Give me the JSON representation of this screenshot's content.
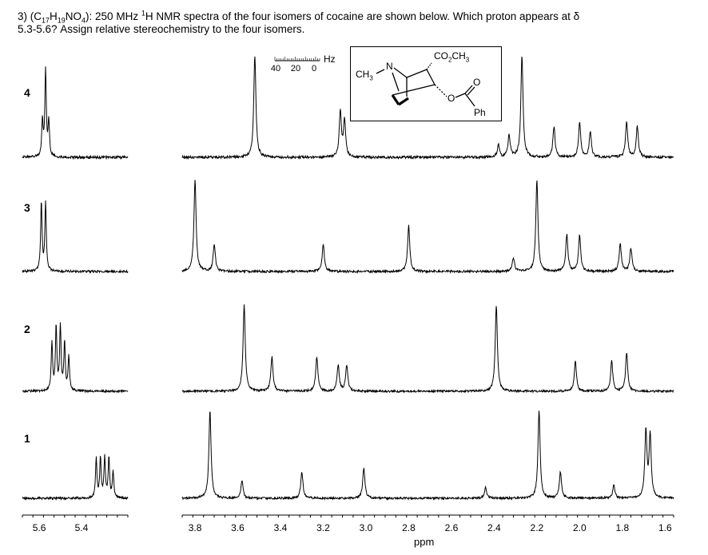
{
  "question": {
    "prefix": "3) (",
    "formula_parts": [
      "C",
      "17",
      "H",
      "19",
      "NO",
      "4"
    ],
    "mid": "): 250 MHz ",
    "nmr_sup": "1",
    "tail": "H NMR spectra of the four isomers of cocaine are shown below.  Which proton appears at  δ",
    "line2": "5.3-5.6?  Assign relative stereochemistry to the four isomers."
  },
  "spectra": [
    {
      "label": "4"
    },
    {
      "label": "3"
    },
    {
      "label": "2"
    },
    {
      "label": "1"
    }
  ],
  "axis": {
    "title": "ppm",
    "left_ticks": [
      "5.6",
      "5.4"
    ],
    "right_ticks": [
      "3.8",
      "3.6",
      "3.4",
      "3.2",
      "3.0",
      "2.8",
      "2.6",
      "2.4",
      "2.2",
      "2.0",
      "1.8",
      "1.6"
    ]
  },
  "scale_bar": {
    "unit": "Hz",
    "values": [
      "40",
      "20",
      "0"
    ]
  },
  "structure": {
    "ester": "CO2CH3",
    "ester_parts": [
      "CO",
      "2",
      "CH",
      "3"
    ],
    "methyl_parts": [
      "CH",
      "3"
    ],
    "nitrogen": "N",
    "oxygen": "O",
    "carbonyl_o": "O",
    "phenyl": "Ph"
  },
  "chart_data": {
    "type": "line",
    "xlabel": "ppm",
    "axes": [
      {
        "x_ticks": [
          5.6,
          5.4
        ],
        "xlim": [
          5.68,
          5.18
        ]
      },
      {
        "x_ticks": [
          3.8,
          3.6,
          3.4,
          3.2,
          3.0,
          2.8,
          2.6,
          2.4,
          2.2,
          2.0,
          1.8,
          1.6
        ],
        "xlim": [
          3.86,
          1.56
        ]
      }
    ],
    "series": [
      {
        "name": "4",
        "peaks_left": [
          [
            5.57,
            0.85
          ],
          [
            5.585,
            0.35
          ],
          [
            5.555,
            0.35
          ]
        ],
        "peaks_right": [
          [
            3.52,
            1.0
          ],
          [
            3.12,
            0.45
          ],
          [
            3.1,
            0.35
          ],
          [
            2.38,
            0.12
          ],
          [
            2.33,
            0.22
          ],
          [
            2.27,
            1.0
          ],
          [
            2.12,
            0.3
          ],
          [
            2.0,
            0.35
          ],
          [
            1.95,
            0.25
          ],
          [
            1.78,
            0.35
          ],
          [
            1.73,
            0.3
          ]
        ]
      },
      {
        "name": "3",
        "peaks_left": [
          [
            5.59,
            0.75
          ],
          [
            5.57,
            0.75
          ]
        ],
        "peaks_right": [
          [
            3.8,
            1.0
          ],
          [
            3.71,
            0.3
          ],
          [
            3.2,
            0.3
          ],
          [
            2.8,
            0.5
          ],
          [
            2.31,
            0.15
          ],
          [
            2.2,
            1.0
          ],
          [
            2.06,
            0.4
          ],
          [
            2.0,
            0.4
          ],
          [
            1.81,
            0.3
          ],
          [
            1.76,
            0.25
          ]
        ]
      },
      {
        "name": "2",
        "peaks_left": [
          [
            5.54,
            0.55
          ],
          [
            5.52,
            0.75
          ],
          [
            5.5,
            0.75
          ],
          [
            5.48,
            0.55
          ],
          [
            5.46,
            0.4
          ]
        ],
        "peaks_right": [
          [
            3.57,
            1.0
          ],
          [
            3.44,
            0.4
          ],
          [
            3.23,
            0.4
          ],
          [
            3.13,
            0.3
          ],
          [
            3.09,
            0.3
          ],
          [
            2.39,
            1.0
          ],
          [
            2.02,
            0.35
          ],
          [
            1.85,
            0.35
          ],
          [
            1.78,
            0.45
          ]
        ]
      },
      {
        "name": "1",
        "peaks_left": [
          [
            5.33,
            0.45
          ],
          [
            5.31,
            0.45
          ],
          [
            5.29,
            0.45
          ],
          [
            5.27,
            0.45
          ],
          [
            5.25,
            0.3
          ]
        ],
        "peaks_right": [
          [
            3.73,
            1.0
          ],
          [
            3.58,
            0.2
          ],
          [
            3.3,
            0.3
          ],
          [
            3.01,
            0.35
          ],
          [
            2.44,
            0.12
          ],
          [
            2.19,
            1.0
          ],
          [
            2.09,
            0.3
          ],
          [
            1.84,
            0.15
          ],
          [
            1.69,
            0.75
          ],
          [
            1.67,
            0.7
          ]
        ]
      }
    ]
  }
}
